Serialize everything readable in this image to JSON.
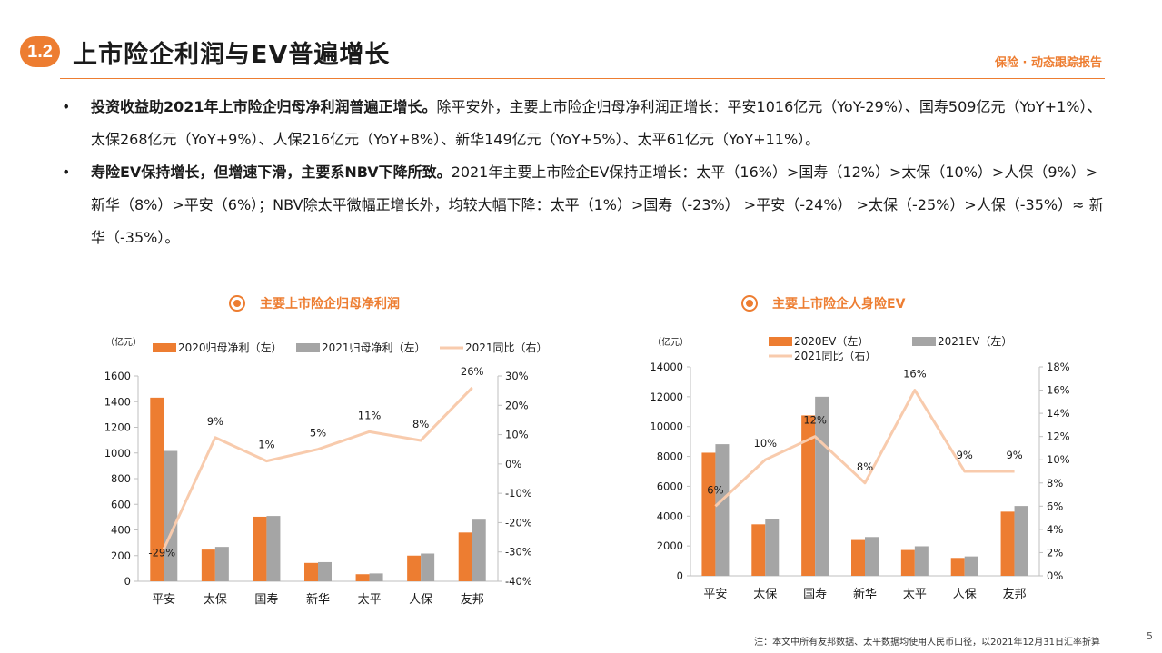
{
  "header": {
    "badge": "1.2",
    "title": "上市险企利润与EV普遍增长",
    "report_tag": "保险 · 动态跟踪报告"
  },
  "bullets": [
    {
      "bold": "投资收益助2021年上市险企归母净利润普遍正增长。",
      "text": "除平安外，主要上市险企归母净利润正增长：平安1016亿元（YoY-29%）、国寿509亿元（YoY+1%）、太保268亿元（YoY+9%）、人保216亿元（YoY+8%）、新华149亿元（YoY+5%）、太平61亿元（YoY+11%）。"
    },
    {
      "bold": "寿险EV保持增长，但增速下滑，主要系NBV下降所致。",
      "text": "2021年主要上市险企EV保持正增长：太平（16%）>国寿（12%）>太保（10%）>人保（9%）>新华（8%）>平安（6%）；NBV除太平微幅正增长外，均较大幅下降：太平（1%）>国寿（-23%） >平安（-24%） >太保（-25%）>人保（-35%）≈ 新华（-35%）。"
    }
  ],
  "colors": {
    "accent": "#ed7d31",
    "bar_2020": "#ed7d31",
    "bar_2021": "#a5a5a5",
    "line": "#f8cbad"
  },
  "chart_data": [
    {
      "type": "bar",
      "title": "主要上市险企归母净利润",
      "unit_label": "（亿元）",
      "categories": [
        "平安",
        "太保",
        "国寿",
        "新华",
        "太平",
        "人保",
        "友邦"
      ],
      "series": [
        {
          "name": "2020归母净利（左）",
          "axis": "left",
          "values": [
            1431,
            247,
            503,
            143,
            55,
            200,
            380
          ]
        },
        {
          "name": "2021归母净利（左）",
          "axis": "right-none",
          "values": [
            1016,
            268,
            509,
            149,
            61,
            216,
            480
          ]
        }
      ],
      "line": {
        "name": "2021同比（右）",
        "axis": "right",
        "values": [
          -29,
          9,
          1,
          5,
          11,
          8,
          26
        ],
        "labels": [
          "-29%",
          "9%",
          "1%",
          "5%",
          "11%",
          "8%",
          "26%"
        ]
      },
      "ylim": [
        0,
        1600
      ],
      "yticks": [
        0,
        200,
        400,
        600,
        800,
        1000,
        1200,
        1400,
        1600
      ],
      "y2lim": [
        -40,
        30
      ],
      "y2ticks": [
        "-40%",
        "-30%",
        "-20%",
        "-10%",
        "0%",
        "10%",
        "20%",
        "30%"
      ],
      "legend": "top"
    },
    {
      "type": "bar",
      "title": "主要上市险企人身险EV",
      "unit_label": "（亿元）",
      "categories": [
        "平安",
        "太保",
        "国寿",
        "新华",
        "太平",
        "人保",
        "友邦"
      ],
      "series": [
        {
          "name": "2020EV（左）",
          "axis": "left",
          "values": [
            8250,
            3450,
            10750,
            2400,
            1730,
            1200,
            4300
          ]
        },
        {
          "name": "2021EV（左）",
          "axis": "left",
          "values": [
            8820,
            3800,
            12000,
            2600,
            1980,
            1300,
            4680
          ]
        }
      ],
      "line": {
        "name": "2021同比（右）",
        "axis": "right",
        "values": [
          6,
          10,
          12,
          8,
          16,
          9,
          9
        ],
        "labels": [
          "6%",
          "10%",
          "12%",
          "8%",
          "16%",
          "9%",
          "9%"
        ]
      },
      "ylim": [
        0,
        14000
      ],
      "yticks": [
        0,
        2000,
        4000,
        6000,
        8000,
        10000,
        12000,
        14000
      ],
      "y2lim": [
        0,
        18
      ],
      "y2ticks": [
        "0%",
        "2%",
        "4%",
        "6%",
        "8%",
        "10%",
        "12%",
        "14%",
        "16%",
        "18%"
      ],
      "legend": "top"
    }
  ],
  "footnote": "注：本文中所有友邦数据、太平数据均使用人民币口径，以2021年12月31日汇率折算",
  "page_number": "5"
}
